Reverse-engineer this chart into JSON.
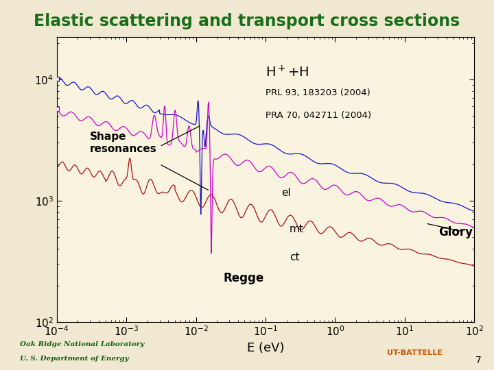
{
  "title": "Elastic scattering and transport cross sections",
  "title_color": "#1a6e1a",
  "title_fontsize": 17,
  "xlabel": "E (eV)",
  "xlim_log": [
    -4,
    2
  ],
  "ylim_log": [
    2,
    4.3
  ],
  "background_color": "#f0e8d0",
  "plot_bg_color": "#faf3e0",
  "ion_label": "H$^+$+H",
  "ref1": "PRL 93, 183203 (2004)",
  "ref2": "PRA 70, 042711 (2004)",
  "label_el": "el",
  "label_mt": "mt",
  "label_ct": "ct",
  "label_shape": "Shape\nresonances",
  "label_glory": "Glory",
  "label_regge": "Regge",
  "color_el": "#1414cc",
  "color_mt": "#cc00cc",
  "color_ct": "#aa1010",
  "footer_text1": "Oak Ridge National Laboratory",
  "footer_text2": "U. S. Department of Energy",
  "page_number": "7"
}
